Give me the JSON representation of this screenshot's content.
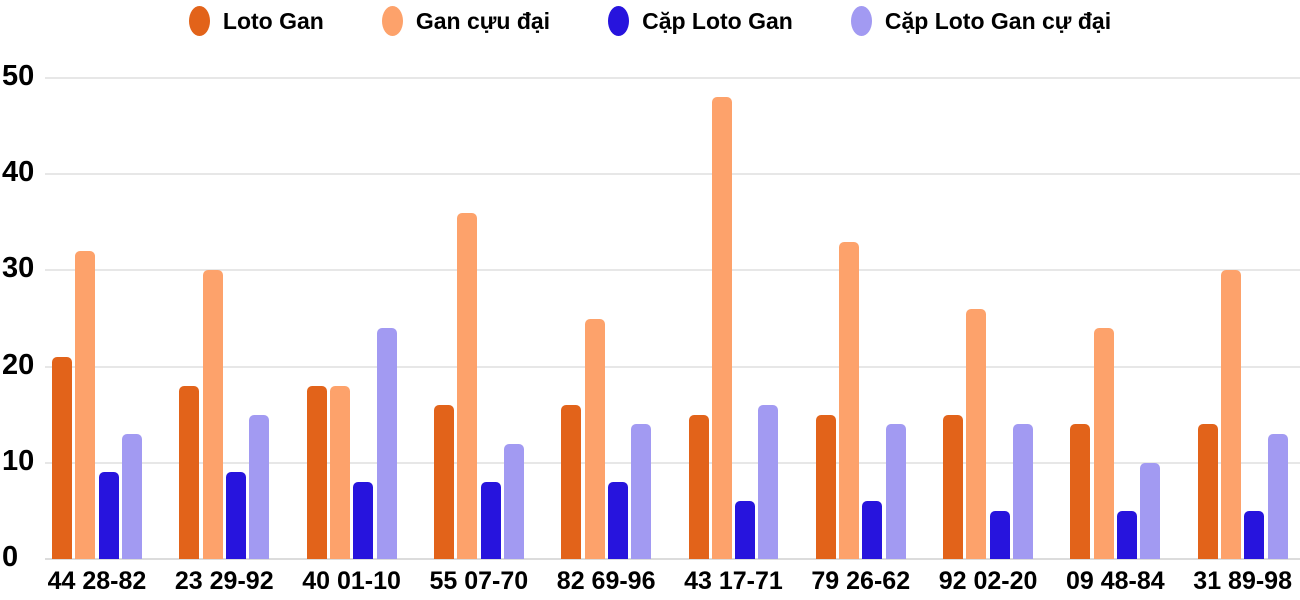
{
  "chart_data": {
    "type": "bar",
    "title": "",
    "xlabel": "",
    "ylabel": "",
    "categories": [
      "44 28-82",
      "23 29-92",
      "40 01-10",
      "55 07-70",
      "82 69-96",
      "43 17-71",
      "79 26-62",
      "92 02-20",
      "09 48-84",
      "31 89-98"
    ],
    "series": [
      {
        "slug": "loto-gan",
        "name": "Loto Gan",
        "color": "#e2631a",
        "values": [
          21,
          18,
          18,
          16,
          16,
          15,
          15,
          15,
          14,
          14
        ]
      },
      {
        "slug": "gan-cuu-dai",
        "name": "Gan cựu đại",
        "color": "#fda26b",
        "values": [
          32,
          30,
          18,
          36,
          25,
          48,
          33,
          26,
          24,
          30
        ]
      },
      {
        "slug": "cap-loto-gan",
        "name": "Cặp Loto Gan",
        "color": "#2714dd",
        "values": [
          9,
          9,
          8,
          8,
          8,
          6,
          6,
          5,
          5,
          5
        ]
      },
      {
        "slug": "cap-loto-gan-cu-dai",
        "name": "Cặp Loto Gan cự đại",
        "color": "#a29af2",
        "values": [
          13,
          15,
          24,
          12,
          14,
          16,
          14,
          14,
          10,
          13
        ]
      }
    ],
    "y_ticks": [
      0,
      10,
      20,
      30,
      40,
      50
    ],
    "ylim": [
      0,
      50
    ],
    "grid": true,
    "legend_position": "top",
    "colors": {
      "text": "#000000",
      "gridline": "#e7e7e7",
      "background": "#ffffff"
    }
  }
}
